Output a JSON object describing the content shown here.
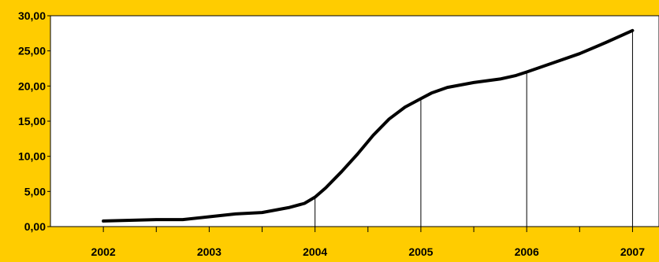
{
  "chart_data": {
    "type": "line",
    "title": "",
    "xlabel": "",
    "ylabel": "",
    "categories": [
      "2002",
      "2003",
      "2004",
      "2005",
      "2006",
      "2007"
    ],
    "x_range": [
      2001.5,
      2007.25
    ],
    "ylim": [
      0,
      30
    ],
    "y_ticks": [
      "0,00",
      "5,00",
      "10,00",
      "15,00",
      "20,00",
      "25,00",
      "30,00"
    ],
    "grid": false,
    "legend": "none",
    "series": [
      {
        "x": [
          2002.0,
          2002.5,
          2002.75,
          2003.0,
          2003.25,
          2003.5,
          2003.75,
          2003.9,
          2004.0,
          2004.1,
          2004.25,
          2004.4,
          2004.55,
          2004.7,
          2004.85,
          2005.0,
          2005.1,
          2005.25,
          2005.5,
          2005.75,
          2005.9,
          2006.0,
          2006.25,
          2006.5,
          2006.75,
          2007.0
        ],
        "values": [
          0.8,
          1.0,
          1.0,
          1.4,
          1.8,
          2.0,
          2.7,
          3.3,
          4.2,
          5.5,
          7.8,
          10.3,
          13.0,
          15.3,
          17.0,
          18.2,
          19.0,
          19.8,
          20.5,
          21.0,
          21.5,
          22.0,
          23.3,
          24.6,
          26.2,
          27.9
        ]
      }
    ],
    "drop_lines_at": [
      2004,
      2005,
      2006,
      2007
    ],
    "colors": {
      "background": "#FFCC00",
      "plot_area": "#FFFFFF",
      "line": "#000000"
    }
  }
}
